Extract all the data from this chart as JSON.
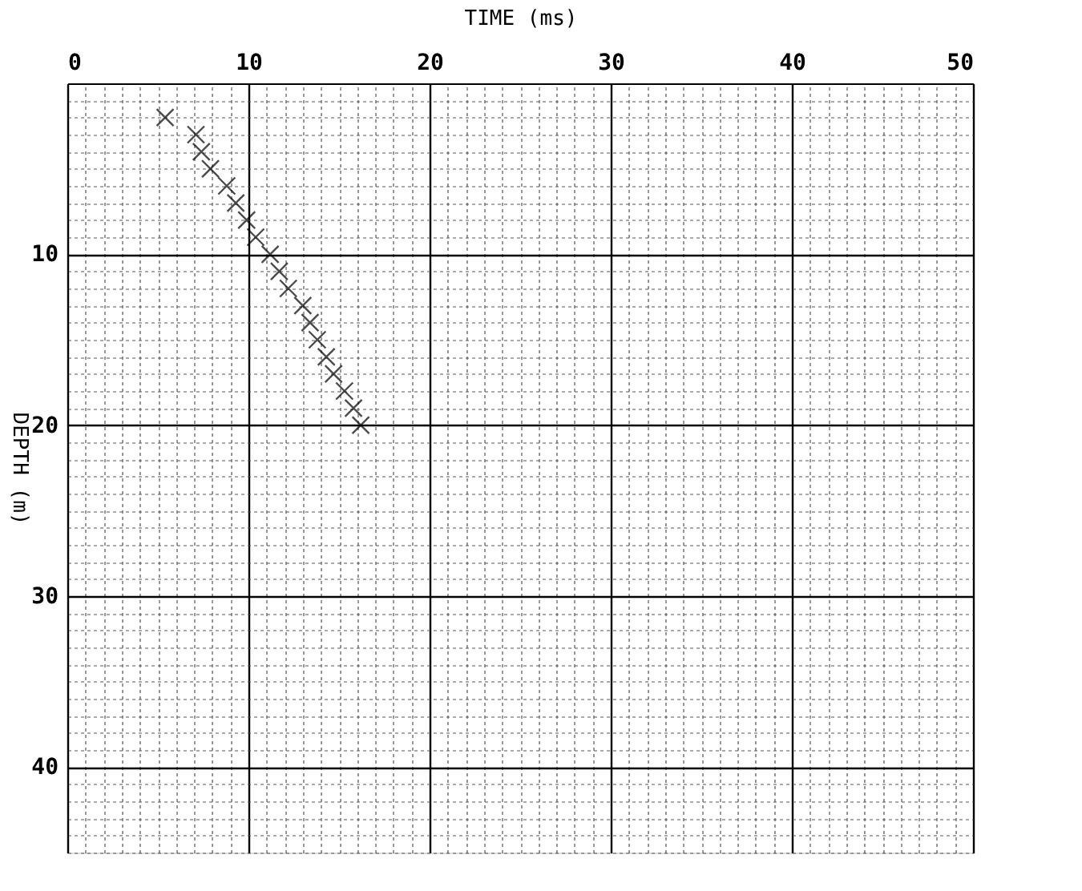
{
  "chart_data": {
    "type": "scatter",
    "xlabel": "TIME (ms)",
    "ylabel": "DEPTH (m)",
    "x": [
      5.4,
      7.1,
      7.4,
      7.9,
      8.8,
      9.3,
      9.9,
      10.4,
      11.2,
      11.7,
      12.2,
      13.0,
      13.4,
      13.8,
      14.3,
      14.7,
      15.3,
      15.8,
      16.2
    ],
    "series": [
      {
        "color": "#000000",
        "values": [
          2,
          3,
          4,
          5,
          6,
          7,
          8,
          9,
          10,
          11,
          12,
          13,
          14,
          15,
          16,
          17,
          18,
          19,
          20
        ]
      }
    ],
    "marker": "cross",
    "grid": true,
    "xlim": [
      0,
      50
    ],
    "ylim": [
      45,
      0
    ],
    "xticks": [
      0,
      {
        "value": 1,
        "label": null
      },
      {
        "value": 2,
        "label": null
      },
      {
        "value": 3,
        "label": null
      },
      {
        "value": 4,
        "label": null
      },
      {
        "value": 5,
        "label": null
      },
      {
        "value": 6,
        "label": null
      },
      {
        "value": 7,
        "label": null
      },
      {
        "value": 8,
        "label": null
      },
      {
        "value": 9,
        "label": null
      },
      10,
      {
        "value": 11,
        "label": null
      },
      {
        "value": 12,
        "label": null
      },
      {
        "value": 13,
        "label": null
      },
      {
        "value": 14,
        "label": null
      },
      {
        "value": 15,
        "label": null
      },
      {
        "value": 16,
        "label": null
      },
      {
        "value": 17,
        "label": null
      },
      {
        "value": 18,
        "label": null
      },
      {
        "value": 19,
        "label": null
      },
      20,
      {
        "value": 21,
        "label": null
      },
      {
        "value": 22,
        "label": null
      },
      {
        "value": 23,
        "label": null
      },
      {
        "value": 24,
        "label": null
      },
      {
        "value": 25,
        "label": null
      },
      {
        "value": 26,
        "label": null
      },
      {
        "value": 27,
        "label": null
      },
      {
        "value": 28,
        "label": null
      },
      {
        "value": 29,
        "label": null
      },
      30,
      {
        "value": 31,
        "label": null
      },
      {
        "value": 32,
        "label": null
      },
      {
        "value": 33,
        "label": null
      },
      {
        "value": 34,
        "label": null
      },
      {
        "value": 35,
        "label": null
      },
      {
        "value": 36,
        "label": null
      },
      {
        "value": 37,
        "label": null
      },
      {
        "value": 38,
        "label": null
      },
      {
        "value": 39,
        "label": null
      },
      40,
      {
        "value": 41,
        "label": null
      },
      {
        "value": 42,
        "label": null
      },
      {
        "value": 43,
        "label": null
      },
      {
        "value": 44,
        "label": null
      },
      {
        "value": 45,
        "label": null
      },
      {
        "value": 46,
        "label": null
      },
      {
        "value": 47,
        "label": null
      },
      {
        "value": 48,
        "label": null
      },
      {
        "value": 49,
        "label": null
      },
      50
    ],
    "yticks": [
      {
        "value": 1,
        "label": null
      },
      {
        "value": 2,
        "label": null
      },
      {
        "value": 3,
        "label": null
      },
      {
        "value": 4,
        "label": null
      },
      {
        "value": 5,
        "label": null
      },
      {
        "value": 6,
        "label": null
      },
      {
        "value": 7,
        "label": null
      },
      {
        "value": 8,
        "label": null
      },
      {
        "value": 9,
        "label": null
      },
      10,
      {
        "value": 11,
        "label": null
      },
      {
        "value": 12,
        "label": null
      },
      {
        "value": 13,
        "label": null
      },
      {
        "value": 14,
        "label": null
      },
      {
        "value": 15,
        "label": null
      },
      {
        "value": 16,
        "label": null
      },
      {
        "value": 17,
        "label": null
      },
      {
        "value": 18,
        "label": null
      },
      {
        "value": 19,
        "label": null
      },
      20,
      {
        "value": 21,
        "label": null
      },
      {
        "value": 22,
        "label": null
      },
      {
        "value": 23,
        "label": null
      },
      {
        "value": 24,
        "label": null
      },
      {
        "value": 25,
        "label": null
      },
      {
        "value": 26,
        "label": null
      },
      {
        "value": 27,
        "label": null
      },
      {
        "value": 28,
        "label": null
      },
      {
        "value": 29,
        "label": null
      },
      30,
      {
        "value": 31,
        "label": null
      },
      {
        "value": 32,
        "label": null
      },
      {
        "value": 33,
        "label": null
      },
      {
        "value": 34,
        "label": null
      },
      {
        "value": 35,
        "label": null
      },
      {
        "value": 36,
        "label": null
      },
      {
        "value": 37,
        "label": null
      },
      {
        "value": 38,
        "label": null
      },
      {
        "value": 39,
        "label": null
      },
      40,
      {
        "value": 41,
        "label": null
      },
      {
        "value": 42,
        "label": null
      },
      {
        "value": 43,
        "label": null
      },
      {
        "value": 44,
        "label": null
      },
      {
        "value": 45,
        "label": null
      }
    ]
  }
}
